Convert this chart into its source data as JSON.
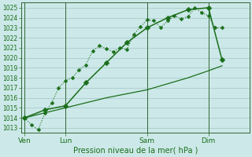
{
  "title": "Pression niveau de la mer( hPa )",
  "bg_color": "#cce8e8",
  "grid_color": "#aacccc",
  "line_color": "#1a6e1a",
  "spine_color": "#336633",
  "ylim": [
    1012.5,
    1025.5
  ],
  "yticks": [
    1013,
    1014,
    1015,
    1016,
    1017,
    1018,
    1019,
    1020,
    1021,
    1022,
    1023,
    1024,
    1025
  ],
  "day_labels": [
    "Ven",
    "Lun",
    "Sam",
    "Dim"
  ],
  "day_positions": [
    0,
    6,
    18,
    27
  ],
  "xlim": [
    -0.5,
    33
  ],
  "vline_positions": [
    0,
    6,
    18,
    27
  ],
  "series1_x": [
    0,
    1,
    2,
    3,
    4,
    5,
    6,
    7,
    8,
    9,
    10,
    11,
    12,
    13,
    14,
    15,
    16,
    17,
    18,
    19,
    20,
    21,
    22,
    23,
    24,
    25,
    26,
    27,
    28,
    29
  ],
  "series1_y": [
    1014.0,
    1013.3,
    1012.8,
    1014.5,
    1015.5,
    1017.0,
    1017.7,
    1018.0,
    1018.8,
    1019.3,
    1020.7,
    1021.2,
    1020.9,
    1020.6,
    1021.0,
    1020.8,
    1022.3,
    1023.1,
    1023.8,
    1023.7,
    1023.0,
    1023.7,
    1024.2,
    1023.9,
    1024.1,
    1025.0,
    1024.5,
    1024.2,
    1023.0,
    1023.0
  ],
  "series2_x": [
    0,
    6,
    12,
    18,
    24,
    27,
    29
  ],
  "series2_y": [
    1014.0,
    1015.0,
    1016.0,
    1016.8,
    1018.0,
    1018.7,
    1019.2
  ],
  "series3_x": [
    0,
    3,
    6,
    9,
    12,
    15,
    18,
    21,
    24,
    27,
    29
  ],
  "series3_y": [
    1014.0,
    1014.8,
    1015.2,
    1017.5,
    1019.5,
    1021.5,
    1023.0,
    1024.0,
    1024.8,
    1025.0,
    1019.8
  ]
}
